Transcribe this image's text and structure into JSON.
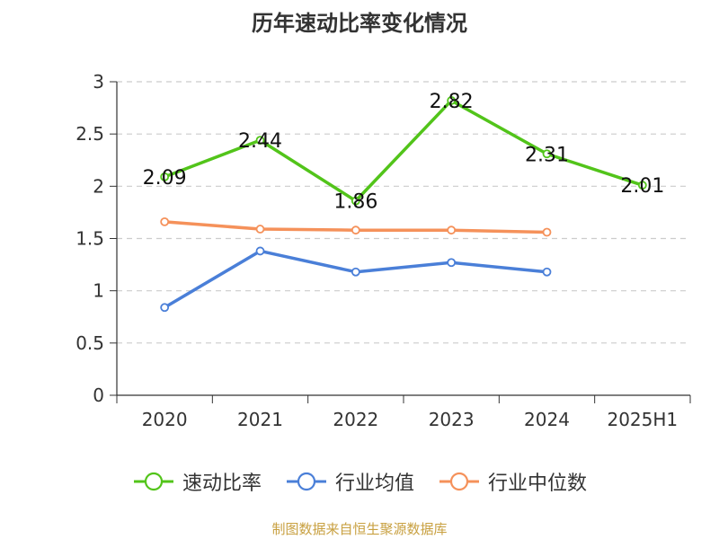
{
  "chart_data": {
    "type": "line",
    "title": "历年速动比率变化情况",
    "categories": [
      "2020",
      "2021",
      "2022",
      "2023",
      "2024",
      "2025H1"
    ],
    "ylim": [
      0,
      3
    ],
    "yticks": [
      "0",
      "0.5",
      "1",
      "1.5",
      "2",
      "2.5",
      "3"
    ],
    "grid": true,
    "legend_position": "bottom",
    "series": [
      {
        "name": "速动比率",
        "color": "#52c41a",
        "values": [
          2.09,
          2.44,
          1.86,
          2.82,
          2.31,
          2.01
        ],
        "labels": [
          "2.09",
          "2.44",
          "1.86",
          "2.82",
          "2.31",
          "2.01"
        ],
        "show_labels": true
      },
      {
        "name": "行业均值",
        "color": "#4a7fd8",
        "values": [
          0.84,
          1.38,
          1.18,
          1.27,
          1.18,
          null
        ],
        "show_labels": false
      },
      {
        "name": "行业中位数",
        "color": "#f5915a",
        "values": [
          1.66,
          1.59,
          1.58,
          1.58,
          1.56,
          null
        ],
        "show_labels": false
      }
    ]
  },
  "footer": {
    "source": "制图数据来自恒生聚源数据库"
  }
}
